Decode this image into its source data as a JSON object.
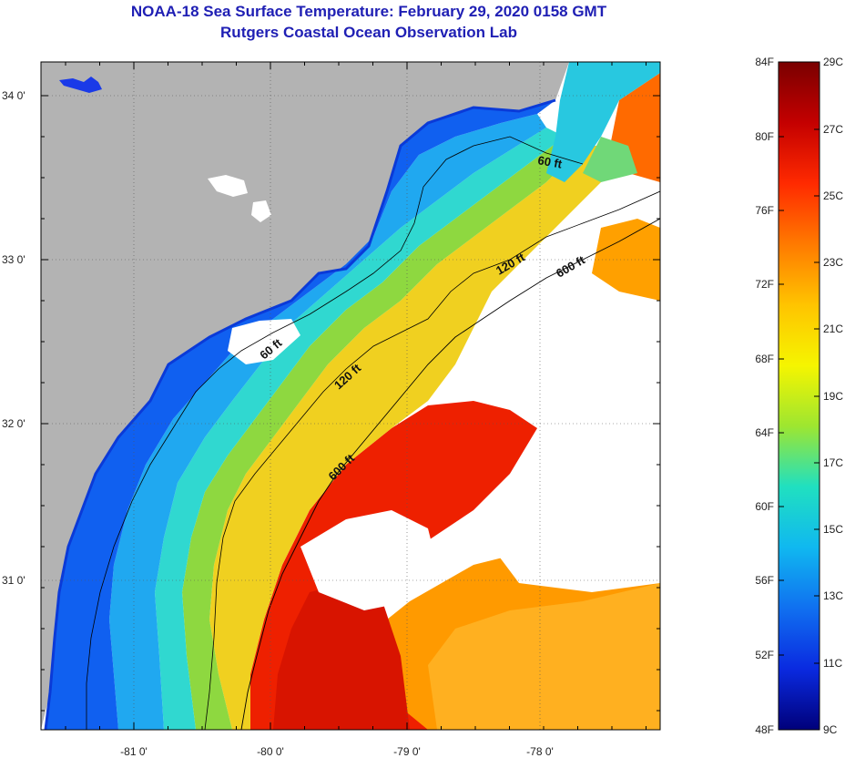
{
  "title_line1": "NOAA-18 Sea Surface Temperature:  February 29, 2020 0158 GMT",
  "title_line2": "Rutgers Coastal Ocean Observation Lab",
  "lat_ticks": [
    "34 0'",
    "33 0'",
    "32 0'",
    "31 0'"
  ],
  "lon_ticks": [
    "-81 0'",
    "-80 0'",
    "-79 0'",
    "-78 0'"
  ],
  "contours": [
    {
      "label": "60 ft"
    },
    {
      "label": "120 ft"
    },
    {
      "label": "600 ft"
    },
    {
      "label": "120 ft"
    },
    {
      "label": "600 ft"
    },
    {
      "label": "60 ft"
    }
  ],
  "colorbar": {
    "fahrenheit_labels": [
      "84F",
      "80F",
      "76F",
      "72F",
      "68F",
      "64F",
      "60F",
      "56F",
      "52F",
      "48F"
    ],
    "celsius_labels": [
      "29C",
      "27C",
      "25C",
      "23C",
      "21C",
      "19C",
      "17C",
      "15C",
      "13C",
      "11C",
      "9C"
    ],
    "gradient_colors": [
      "#7a0000",
      "#c40000",
      "#ff2a00",
      "#ff7a00",
      "#ffc400",
      "#f5f500",
      "#9ee630",
      "#20e0c0",
      "#10b8f0",
      "#1070f0",
      "#0a2ae0",
      "#00007a"
    ]
  },
  "colors": {
    "land": "#b3b3b3",
    "cloud": "#ffffff",
    "title": "#1f1fb4"
  }
}
